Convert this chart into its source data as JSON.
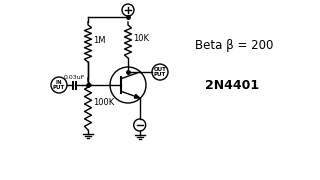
{
  "bg_color": "#ffffff",
  "line_color": "#000000",
  "beta_text": "Beta β = 200",
  "part_text": "2N4401",
  "r1_label": "1M",
  "r2_label": "100K",
  "r3_label": "10K",
  "cap_label": "0.03uF",
  "input_label": "IN\nPUT",
  "output_label": "OUT\nPUT",
  "figsize": [
    3.2,
    1.8
  ],
  "dpi": 100
}
